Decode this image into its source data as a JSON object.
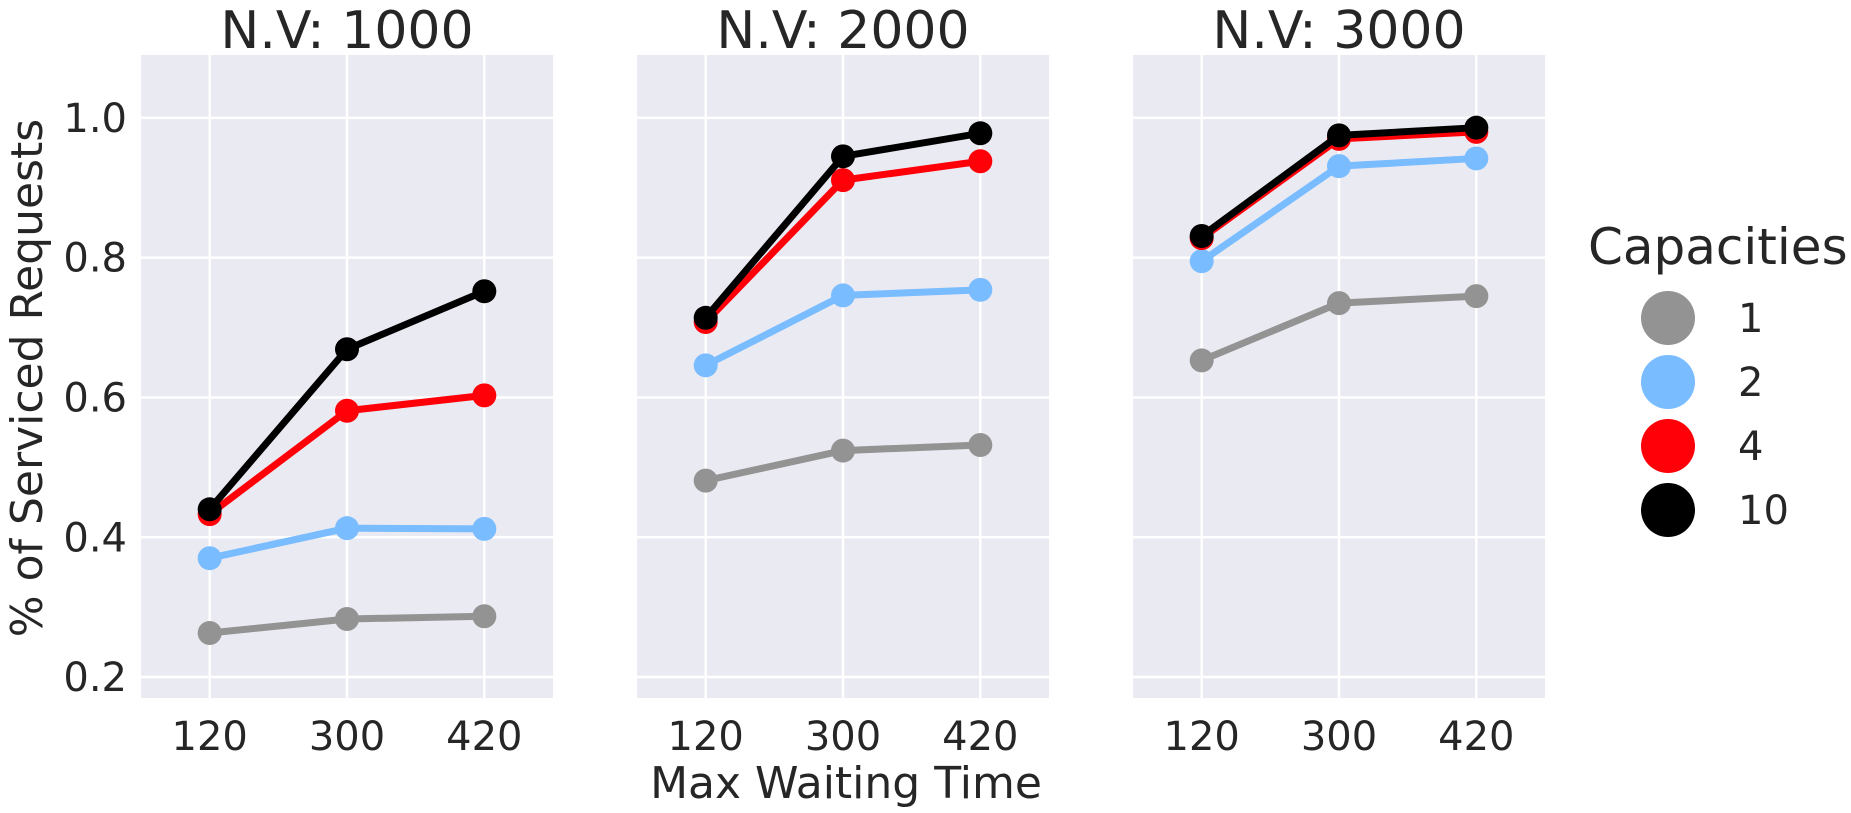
{
  "chart_data": {
    "type": "line",
    "layout": "facets",
    "x_label": "Max Waiting Time",
    "y_label": "% of Serviced Requests",
    "x_categories": [
      "120",
      "300",
      "420"
    ],
    "y_ticks": [
      "0.2",
      "0.4",
      "0.6",
      "0.8",
      "1.0"
    ],
    "ylim": [
      0.17,
      1.09
    ],
    "grid": true,
    "legend": {
      "title": "Capacities",
      "position": "right",
      "items": [
        {
          "label": "1",
          "color": "#939393"
        },
        {
          "label": "2",
          "color": "#79bcff"
        },
        {
          "label": "4",
          "color": "#ff0008"
        },
        {
          "label": "10",
          "color": "#000000"
        }
      ]
    },
    "panels": [
      {
        "title": "N.V: 1000",
        "series": [
          {
            "capacity": "1",
            "values": [
              0.263,
              0.283,
              0.287
            ]
          },
          {
            "capacity": "2",
            "values": [
              0.37,
              0.413,
              0.412
            ]
          },
          {
            "capacity": "4",
            "values": [
              0.433,
              0.581,
              0.603
            ]
          },
          {
            "capacity": "10",
            "values": [
              0.44,
              0.669,
              0.752
            ]
          }
        ]
      },
      {
        "title": "N.V: 2000",
        "series": [
          {
            "capacity": "1",
            "values": [
              0.481,
              0.524,
              0.532
            ]
          },
          {
            "capacity": "2",
            "values": [
              0.646,
              0.746,
              0.754
            ]
          },
          {
            "capacity": "4",
            "values": [
              0.708,
              0.911,
              0.938
            ]
          },
          {
            "capacity": "10",
            "values": [
              0.714,
              0.945,
              0.978
            ]
          }
        ]
      },
      {
        "title": "N.V: 3000",
        "series": [
          {
            "capacity": "1",
            "values": [
              0.653,
              0.735,
              0.745
            ]
          },
          {
            "capacity": "2",
            "values": [
              0.795,
              0.931,
              0.942
            ]
          },
          {
            "capacity": "4",
            "values": [
              0.828,
              0.97,
              0.98
            ]
          },
          {
            "capacity": "10",
            "values": [
              0.831,
              0.975,
              0.986
            ]
          }
        ]
      }
    ]
  }
}
